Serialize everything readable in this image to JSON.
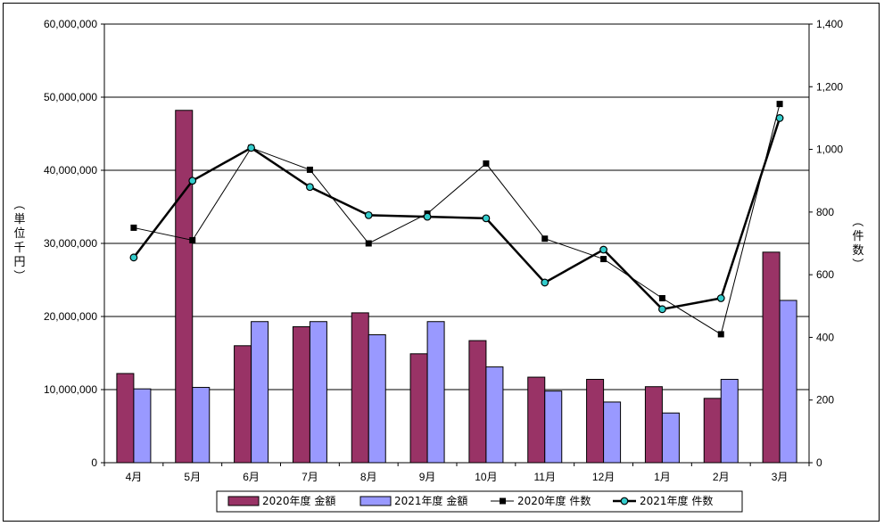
{
  "chart_data": {
    "type": "bar",
    "categories": [
      "4月",
      "5月",
      "6月",
      "7月",
      "8月",
      "9月",
      "10月",
      "11月",
      "12月",
      "1月",
      "2月",
      "3月"
    ],
    "bar_series": [
      {
        "name": "2020年度 金額",
        "color": "#993366",
        "values": [
          12200000,
          48200000,
          16000000,
          18600000,
          20500000,
          14900000,
          16700000,
          11700000,
          11400000,
          10400000,
          8800000,
          28800000
        ]
      },
      {
        "name": "2021年度 金額",
        "color": "#9999ff",
        "values": [
          10100000,
          10300000,
          19300000,
          19300000,
          17500000,
          19300000,
          13100000,
          9800000,
          8300000,
          6800000,
          11400000,
          22200000
        ]
      }
    ],
    "line_series": [
      {
        "name": "2020年度 件数",
        "color": "#000000",
        "marker": "square",
        "values": [
          750,
          710,
          1005,
          935,
          700,
          795,
          955,
          715,
          650,
          525,
          410,
          1145
        ]
      },
      {
        "name": "2021年度 件数",
        "color": "#000000",
        "marker": "circle",
        "marker_fill": "#33cccc",
        "values": [
          655,
          900,
          1005,
          880,
          790,
          785,
          780,
          575,
          680,
          490,
          525,
          1100
        ]
      }
    ],
    "y_left": {
      "label": "（単位千円）",
      "min": 0,
      "max": 60000000,
      "ticks": [
        "0",
        "10,000,000",
        "20,000,000",
        "30,000,000",
        "40,000,000",
        "50,000,000",
        "60,000,000"
      ]
    },
    "y_right": {
      "label": "（件数）",
      "min": 0,
      "max": 1400,
      "ticks": [
        "0",
        "200",
        "400",
        "600",
        "800",
        "1,000",
        "1,200",
        "1,400"
      ]
    },
    "grid": true,
    "legend_position": "bottom"
  }
}
